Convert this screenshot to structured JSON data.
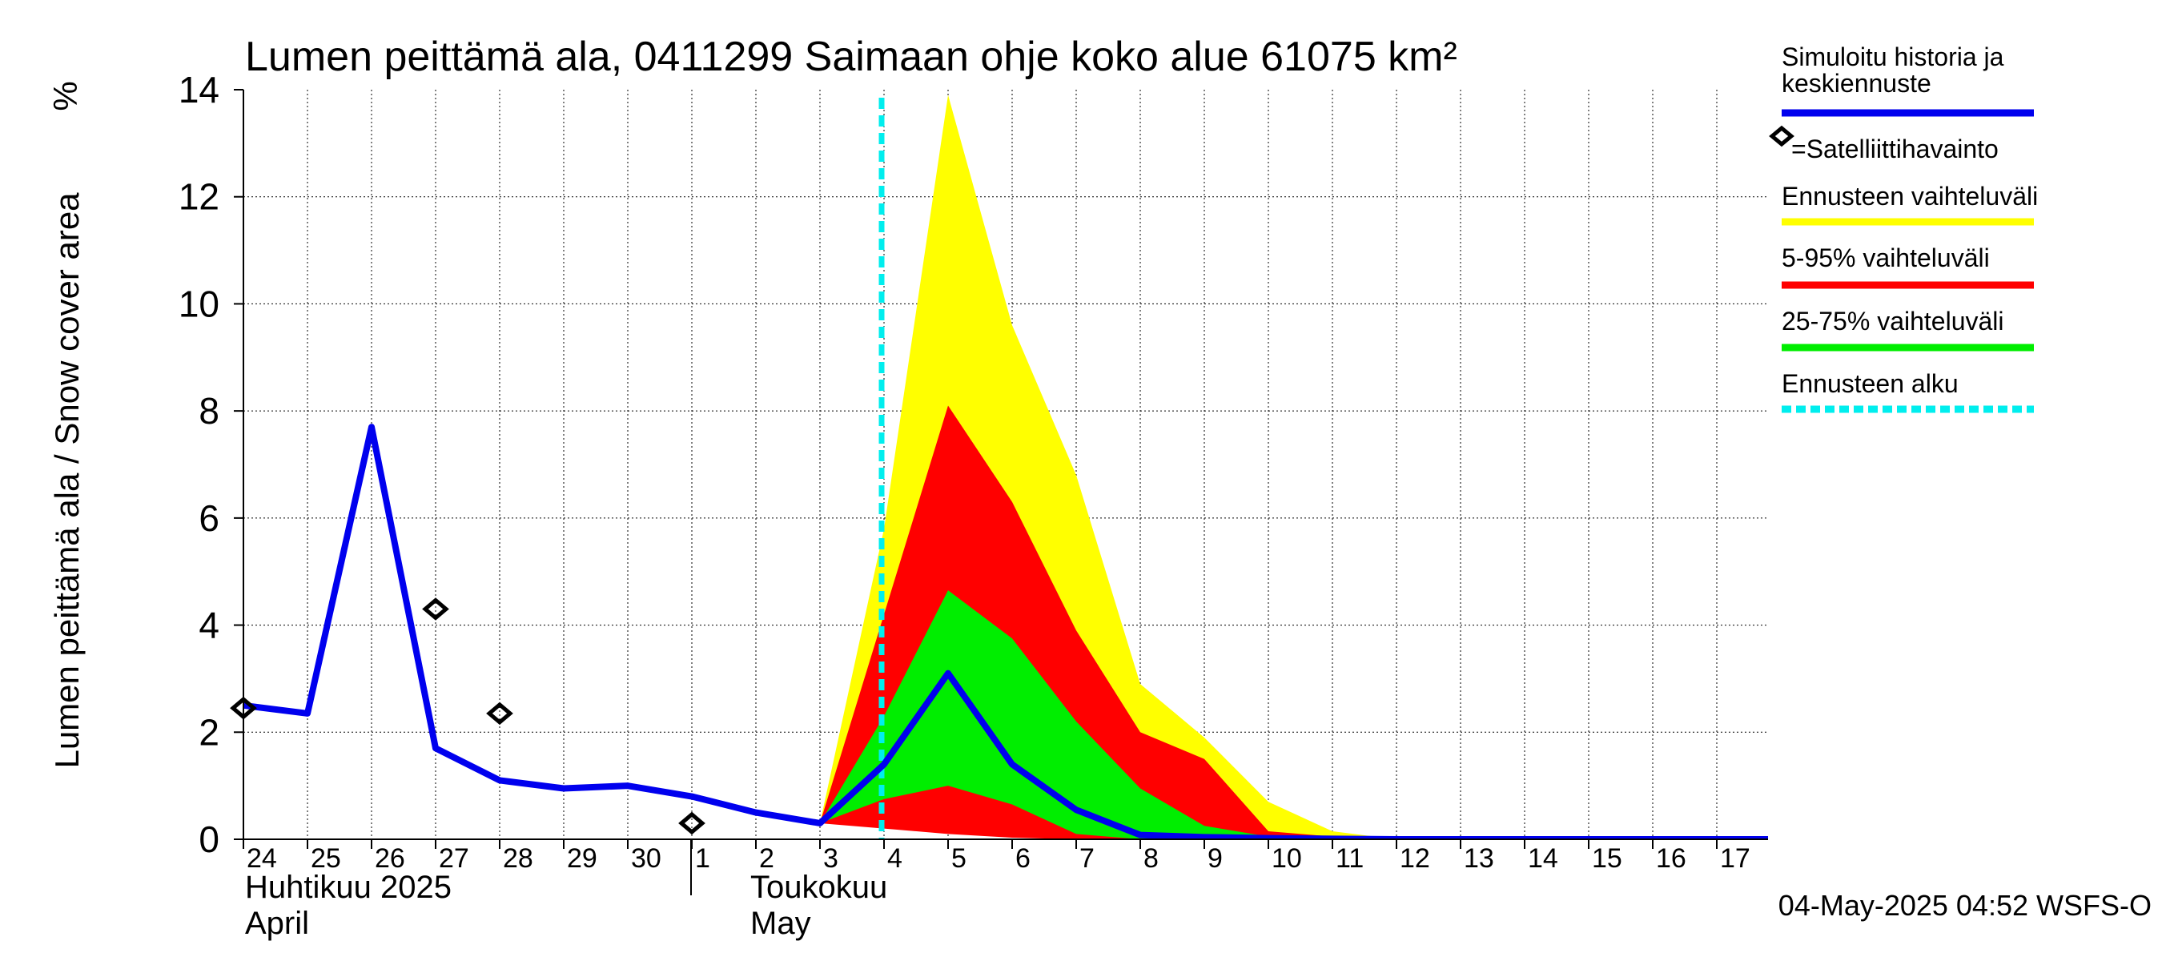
{
  "chart_data": {
    "type": "area",
    "title": "Lumen peittämä ala, 0411299 Saimaan ohje koko alue 61075 km²",
    "ylabel": "Lumen peittämä ala / Snow cover area",
    "yunit": "%",
    "ylim": [
      0,
      14
    ],
    "yticks": [
      0,
      2,
      4,
      6,
      8,
      10,
      12,
      14
    ],
    "grid": true,
    "legend_position": "right",
    "x_dates": [
      "2025-04-24",
      "2025-04-25",
      "2025-04-26",
      "2025-04-27",
      "2025-04-28",
      "2025-04-29",
      "2025-04-30",
      "2025-05-01",
      "2025-05-02",
      "2025-05-03",
      "2025-05-04",
      "2025-05-05",
      "2025-05-06",
      "2025-05-07",
      "2025-05-08",
      "2025-05-09",
      "2025-05-10",
      "2025-05-11",
      "2025-05-12",
      "2025-05-13",
      "2025-05-14",
      "2025-05-15",
      "2025-05-16",
      "2025-05-17"
    ],
    "x_tick_labels": [
      "24",
      "25",
      "26",
      "27",
      "28",
      "29",
      "30",
      "1",
      "2",
      "3",
      "4",
      "5",
      "6",
      "7",
      "8",
      "9",
      "10",
      "11",
      "12",
      "13",
      "14",
      "15",
      "16",
      "17"
    ],
    "months": [
      {
        "label_fi": "Huhtikuu  2025",
        "label_en": "April"
      },
      {
        "label_fi": "Toukokuu",
        "label_en": "May"
      }
    ],
    "forecast_start": "2025-05-04",
    "series": [
      {
        "name": "Simuloitu historia ja keskiennuste",
        "color": "#0000ee",
        "x": [
          "2025-04-24",
          "2025-04-25",
          "2025-04-26",
          "2025-04-27",
          "2025-04-28",
          "2025-04-29",
          "2025-04-30",
          "2025-05-01",
          "2025-05-02",
          "2025-05-03",
          "2025-05-04",
          "2025-05-05",
          "2025-05-06",
          "2025-05-07",
          "2025-05-08",
          "2025-05-09",
          "2025-05-10",
          "2025-05-11",
          "2025-05-12",
          "2025-05-13",
          "2025-05-14",
          "2025-05-15",
          "2025-05-16",
          "2025-05-17",
          "2025-05-18"
        ],
        "values": [
          2.5,
          2.35,
          7.7,
          1.7,
          1.1,
          0.95,
          1.0,
          0.8,
          0.5,
          0.3,
          1.4,
          3.1,
          1.4,
          0.55,
          0.08,
          0.04,
          0.02,
          0.01,
          0.0,
          0.0,
          0.0,
          0.0,
          0.0,
          0.0,
          0.0
        ]
      },
      {
        "name": "=Satelliittihavainto",
        "type": "scatter",
        "color": "#000000",
        "x": [
          "2025-04-24",
          "2025-04-27",
          "2025-04-28",
          "2025-05-01"
        ],
        "values": [
          2.45,
          4.3,
          2.35,
          0.3
        ]
      }
    ],
    "bands": [
      {
        "name": "Ennusteen vaihteluväli",
        "color": "#ffff00",
        "x": [
          "2025-05-03",
          "2025-05-04",
          "2025-05-05",
          "2025-05-06",
          "2025-05-07",
          "2025-05-08",
          "2025-05-09",
          "2025-05-10",
          "2025-05-11",
          "2025-05-12"
        ],
        "upper": [
          0.3,
          5.8,
          13.9,
          9.6,
          6.8,
          2.9,
          1.9,
          0.7,
          0.15,
          0.0
        ],
        "lower": [
          0.3,
          0.35,
          0.15,
          0.05,
          0.0,
          0.0,
          0.0,
          0.0,
          0.0,
          0.0
        ]
      },
      {
        "name": "5-95% vaihteluväli",
        "color": "#ff0000",
        "x": [
          "2025-05-03",
          "2025-05-04",
          "2025-05-05",
          "2025-05-06",
          "2025-05-07",
          "2025-05-08",
          "2025-05-09",
          "2025-05-10",
          "2025-05-11",
          "2025-05-12"
        ],
        "upper": [
          0.3,
          4.2,
          8.1,
          6.3,
          3.9,
          2.0,
          1.5,
          0.15,
          0.05,
          0.0
        ],
        "lower": [
          0.3,
          0.2,
          0.1,
          0.03,
          0.0,
          0.0,
          0.0,
          0.0,
          0.0,
          0.0
        ]
      },
      {
        "name": "25-75% vaihteluväli",
        "color": "#00ee00",
        "x": [
          "2025-05-03",
          "2025-05-04",
          "2025-05-05",
          "2025-05-06",
          "2025-05-07",
          "2025-05-08",
          "2025-05-09",
          "2025-05-10",
          "2025-05-11",
          "2025-05-12"
        ],
        "upper": [
          0.3,
          2.3,
          4.65,
          3.75,
          2.2,
          0.95,
          0.25,
          0.05,
          0.0,
          0.0
        ],
        "lower": [
          0.3,
          0.75,
          1.0,
          0.65,
          0.1,
          0.0,
          0.0,
          0.0,
          0.0,
          0.0
        ]
      }
    ],
    "legend": [
      {
        "label": "Simuloitu historia ja\nkeskiennuste",
        "color": "#0000ee",
        "style": "line"
      },
      {
        "label": "=Satelliittihavainto",
        "color": "#000000",
        "style": "marker"
      },
      {
        "label": "Ennusteen vaihteluväli",
        "color": "#ffff00",
        "style": "line"
      },
      {
        "label": "5-95% vaihteluväli",
        "color": "#ff0000",
        "style": "line"
      },
      {
        "label": "25-75% vaihteluväli",
        "color": "#00ee00",
        "style": "line"
      },
      {
        "label": "Ennusteen alku",
        "color": "#00eeee",
        "style": "dashed"
      }
    ],
    "footer": "04-May-2025 04:52 WSFS-O"
  }
}
